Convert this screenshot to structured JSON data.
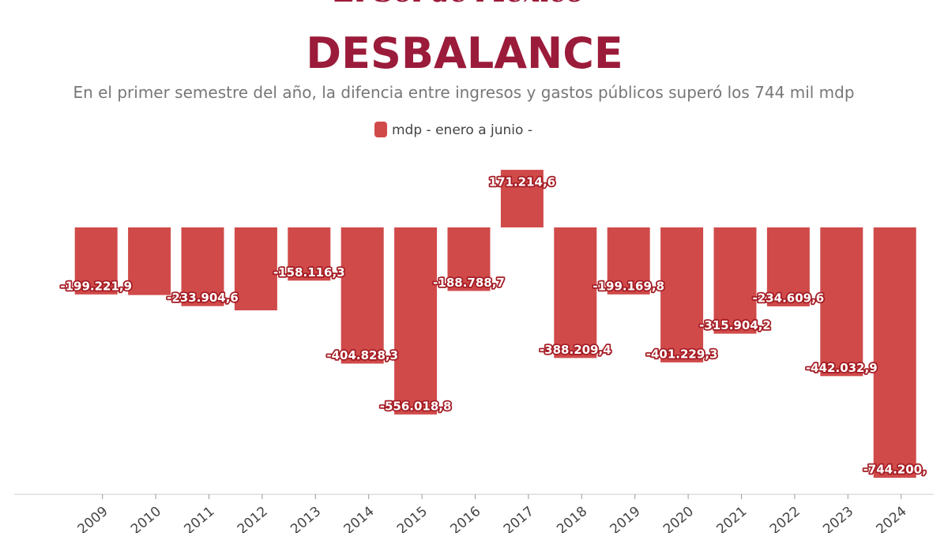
{
  "brand": "El Sol de México",
  "chart_data": {
    "type": "bar",
    "title": "DESBALANCE",
    "subtitle": "En el primer semestre del año, la difencia entre ingresos y gastos públicos superó los 744 mil mdp",
    "categories": [
      "2009",
      "2010",
      "2011",
      "2012",
      "2013",
      "2014",
      "2015",
      "2016",
      "2017",
      "2018",
      "2019",
      "2020",
      "2021",
      "2022",
      "2023",
      "2024"
    ],
    "series": [
      {
        "name": "mdp - enero a junio -",
        "color": "#d04a4a",
        "values": [
          -199221.9,
          -201000,
          -233904.6,
          -246500,
          -158116.3,
          -404828.3,
          -556018.8,
          -188788.7,
          171214.6,
          -388209.4,
          -199169.8,
          -401229.3,
          -315904.2,
          -234609.6,
          -442032.9,
          -744200
        ],
        "value_labels": [
          "-199.221,9",
          null,
          "-233.904,6",
          null,
          "-158.116,3",
          "-404.828,3",
          "-556.018,8",
          "-188.788,7",
          "171.214,6",
          "-388.209,4",
          "-199.169,8",
          "-401.229,3",
          "-315.904,2",
          "-234.609,6",
          "-442.032,9",
          "-744.200,"
        ]
      }
    ],
    "ylim": [
      -793400,
      206600
    ]
  }
}
